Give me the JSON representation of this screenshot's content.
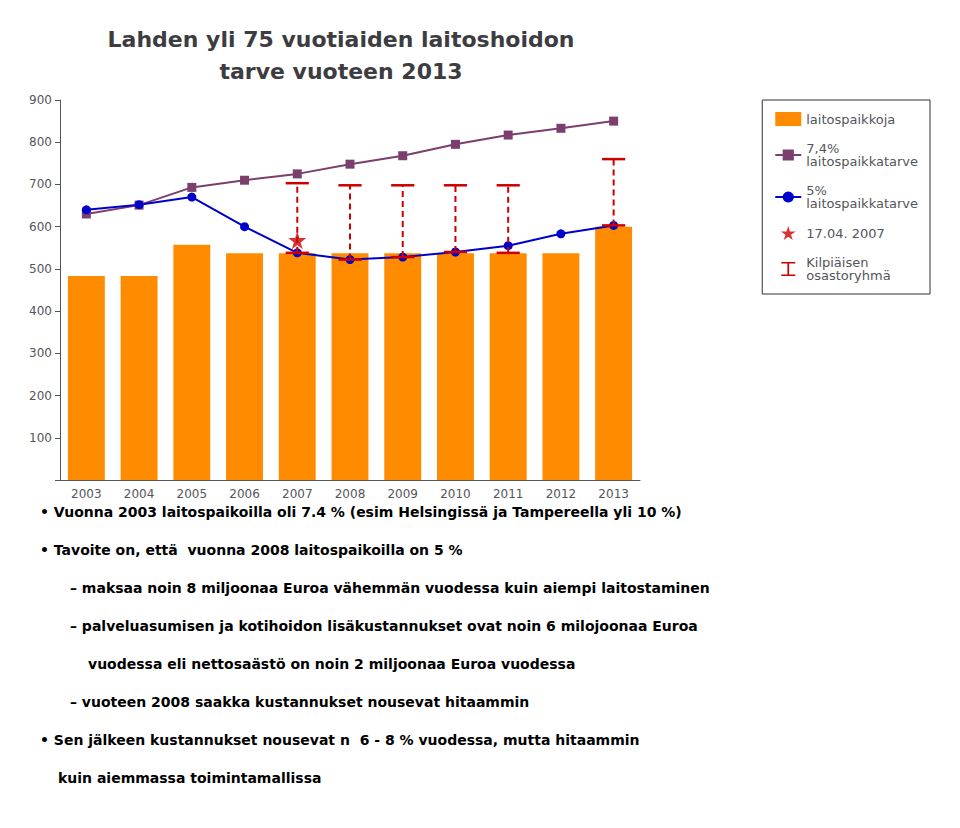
{
  "chart_data": {
    "type": "bar",
    "title": "Lahden yli 75 vuotiaiden laitoshoidon\ntarve vuoteen 2013",
    "categories": [
      "2003",
      "2004",
      "2005",
      "2006",
      "2007",
      "2008",
      "2009",
      "2010",
      "2011",
      "2012",
      "2013"
    ],
    "series": [
      {
        "name": "laitospaikkoja",
        "type": "bar",
        "color": "#FF8C00",
        "values": [
          483,
          483,
          557,
          537,
          537,
          537,
          537,
          537,
          537,
          537,
          600
        ]
      },
      {
        "name": "7,4%\nlaitospaikkatarve",
        "type": "line",
        "marker": "square",
        "color": "#7B3F6E",
        "values": [
          630,
          651,
          693,
          710,
          725,
          748,
          768,
          795,
          817,
          833,
          850
        ]
      },
      {
        "name": "5%\nlaitospaikkatarve",
        "type": "line",
        "marker": "circle",
        "color": "#0000CC",
        "values": [
          640,
          652,
          670,
          600,
          538,
          522,
          528,
          540,
          555,
          583,
          603
        ]
      },
      {
        "name": "17.04. 2007",
        "type": "scatter",
        "marker": "star",
        "color": "#CC0000",
        "values": [
          null,
          null,
          null,
          null,
          568,
          null,
          null,
          null,
          null,
          null,
          null
        ]
      },
      {
        "name": "Kilpiäisen\nosastoryhmä",
        "type": "range",
        "line_style": "dashed",
        "color": "#CC0000",
        "low": [
          null,
          null,
          null,
          null,
          538,
          522,
          528,
          540,
          538,
          null,
          603
        ],
        "high": [
          null,
          null,
          null,
          null,
          703,
          698,
          698,
          698,
          698,
          null,
          760
        ]
      }
    ],
    "ylim": [
      0,
      900
    ],
    "yticks": [
      {
        "value": 0,
        "label": ""
      },
      100,
      200,
      300,
      400,
      500,
      600,
      700,
      800,
      900
    ],
    "grid": false,
    "legend": "right",
    "annotations": [
      "• Vuonna 2003 laitospaikoilla oli 7.4 % (esim Helsingissä ja Tampereella yli 10 %)",
      "• Tavoite on, että  vuonna 2008 laitospaikoilla on 5 %",
      "– maksaa noin 8 miljoonaa Euroa vähemmän vuodessa kuin aiempi laitostaminen",
      "– palveluasumisen ja kotihoidon lisäkustannukset ovat noin 6 milojoonaa Euroa",
      "vuodessa eli nettosaästö on noin 2 miljoonaa Euroa vuodessa",
      "– vuoteen 2008 saakka kustannukset nousevat hitaammin",
      "• Sen jälkeen kustannukset nousevat n  6 - 8 % vuodessa, mutta hitaammin",
      "kuin aiemmassa toimintamallissa"
    ]
  }
}
